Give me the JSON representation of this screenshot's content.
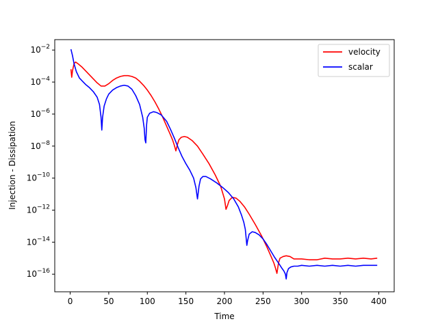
{
  "chart_data": {
    "type": "line",
    "title": "",
    "xlabel": "Time",
    "ylabel": "Injection - Dissipation",
    "xlim": [
      -20,
      420
    ],
    "xticks": [
      0,
      50,
      100,
      150,
      200,
      250,
      300,
      350,
      400
    ],
    "yscale": "log",
    "ylim_exp": [
      -17.1,
      -1.35
    ],
    "yticks_exp": [
      -16,
      -14,
      -12,
      -10,
      -8,
      -6,
      -4,
      -2
    ],
    "ytick_labels": [
      "10",
      "10",
      "10",
      "10",
      "10",
      "10",
      "10",
      "10"
    ],
    "ytick_superscripts": [
      "−16",
      "−14",
      "−12",
      "−10",
      "−8",
      "−6",
      "−4",
      "−2"
    ],
    "grid": false,
    "legend_position": "top-right",
    "series": [
      {
        "name": "velocity",
        "color": "#ff0000",
        "log10_y_points": [
          [
            1,
            -3.2
          ],
          [
            2,
            -3.7
          ],
          [
            3,
            -3.3
          ],
          [
            5,
            -2.85
          ],
          [
            7,
            -2.75
          ],
          [
            10,
            -2.85
          ],
          [
            15,
            -3.05
          ],
          [
            20,
            -3.3
          ],
          [
            25,
            -3.55
          ],
          [
            30,
            -3.8
          ],
          [
            35,
            -4.05
          ],
          [
            40,
            -4.25
          ],
          [
            45,
            -4.25
          ],
          [
            50,
            -4.1
          ],
          [
            55,
            -3.9
          ],
          [
            60,
            -3.75
          ],
          [
            65,
            -3.65
          ],
          [
            70,
            -3.6
          ],
          [
            75,
            -3.6
          ],
          [
            80,
            -3.65
          ],
          [
            85,
            -3.75
          ],
          [
            90,
            -3.95
          ],
          [
            95,
            -4.2
          ],
          [
            100,
            -4.5
          ],
          [
            105,
            -4.85
          ],
          [
            110,
            -5.25
          ],
          [
            115,
            -5.7
          ],
          [
            120,
            -6.2
          ],
          [
            125,
            -6.75
          ],
          [
            130,
            -7.3
          ],
          [
            133,
            -7.65
          ],
          [
            135,
            -7.95
          ],
          [
            137,
            -8.3
          ],
          [
            139,
            -7.9
          ],
          [
            141,
            -7.6
          ],
          [
            144,
            -7.45
          ],
          [
            148,
            -7.4
          ],
          [
            152,
            -7.45
          ],
          [
            158,
            -7.65
          ],
          [
            165,
            -8.0
          ],
          [
            172,
            -8.5
          ],
          [
            180,
            -9.1
          ],
          [
            188,
            -9.8
          ],
          [
            195,
            -10.5
          ],
          [
            200,
            -11.3
          ],
          [
            202,
            -11.95
          ],
          [
            204,
            -11.7
          ],
          [
            206,
            -11.4
          ],
          [
            210,
            -11.2
          ],
          [
            215,
            -11.25
          ],
          [
            220,
            -11.45
          ],
          [
            226,
            -11.8
          ],
          [
            232,
            -12.25
          ],
          [
            240,
            -12.9
          ],
          [
            248,
            -13.6
          ],
          [
            255,
            -14.3
          ],
          [
            260,
            -14.85
          ],
          [
            264,
            -15.3
          ],
          [
            266,
            -15.6
          ],
          [
            268,
            -15.95
          ],
          [
            270,
            -15.3
          ],
          [
            272,
            -15.0
          ],
          [
            276,
            -14.9
          ],
          [
            280,
            -14.85
          ],
          [
            285,
            -14.9
          ],
          [
            290,
            -15.05
          ],
          [
            295,
            -15.05
          ],
          [
            300,
            -15.05
          ],
          [
            310,
            -15.1
          ],
          [
            320,
            -15.1
          ],
          [
            330,
            -15.0
          ],
          [
            340,
            -15.05
          ],
          [
            350,
            -15.05
          ],
          [
            360,
            -15.0
          ],
          [
            370,
            -15.05
          ],
          [
            380,
            -15.0
          ],
          [
            390,
            -15.05
          ],
          [
            398,
            -15.0
          ]
        ]
      },
      {
        "name": "scalar",
        "color": "#0000ff",
        "log10_y_points": [
          [
            1,
            -1.95
          ],
          [
            3,
            -2.35
          ],
          [
            5,
            -2.85
          ],
          [
            8,
            -3.35
          ],
          [
            12,
            -3.75
          ],
          [
            16,
            -3.95
          ],
          [
            20,
            -4.15
          ],
          [
            25,
            -4.35
          ],
          [
            30,
            -4.6
          ],
          [
            35,
            -4.95
          ],
          [
            38,
            -5.4
          ],
          [
            40,
            -6.2
          ],
          [
            41,
            -7.0
          ],
          [
            42,
            -6.2
          ],
          [
            44,
            -5.5
          ],
          [
            47,
            -5.05
          ],
          [
            50,
            -4.75
          ],
          [
            55,
            -4.5
          ],
          [
            60,
            -4.35
          ],
          [
            65,
            -4.25
          ],
          [
            70,
            -4.2
          ],
          [
            75,
            -4.25
          ],
          [
            80,
            -4.45
          ],
          [
            85,
            -4.85
          ],
          [
            90,
            -5.4
          ],
          [
            94,
            -6.2
          ],
          [
            96,
            -6.9
          ],
          [
            97,
            -7.6
          ],
          [
            98,
            -7.8
          ],
          [
            99,
            -6.7
          ],
          [
            100,
            -6.2
          ],
          [
            103,
            -5.95
          ],
          [
            108,
            -5.85
          ],
          [
            112,
            -5.9
          ],
          [
            118,
            -6.05
          ],
          [
            125,
            -6.45
          ],
          [
            130,
            -6.95
          ],
          [
            135,
            -7.5
          ],
          [
            140,
            -8.1
          ],
          [
            145,
            -8.65
          ],
          [
            150,
            -9.1
          ],
          [
            155,
            -9.5
          ],
          [
            160,
            -10.0
          ],
          [
            163,
            -10.6
          ],
          [
            165,
            -11.3
          ],
          [
            167,
            -10.5
          ],
          [
            169,
            -10.05
          ],
          [
            172,
            -9.9
          ],
          [
            176,
            -9.9
          ],
          [
            182,
            -10.05
          ],
          [
            190,
            -10.3
          ],
          [
            198,
            -10.6
          ],
          [
            205,
            -10.9
          ],
          [
            212,
            -11.3
          ],
          [
            218,
            -11.8
          ],
          [
            222,
            -12.3
          ],
          [
            225,
            -12.75
          ],
          [
            227,
            -13.2
          ],
          [
            228,
            -13.7
          ],
          [
            229,
            -14.2
          ],
          [
            230,
            -13.9
          ],
          [
            232,
            -13.5
          ],
          [
            236,
            -13.35
          ],
          [
            240,
            -13.4
          ],
          [
            245,
            -13.55
          ],
          [
            250,
            -13.8
          ],
          [
            255,
            -14.15
          ],
          [
            260,
            -14.55
          ],
          [
            265,
            -14.95
          ],
          [
            270,
            -15.3
          ],
          [
            274,
            -15.6
          ],
          [
            277,
            -15.8
          ],
          [
            279,
            -16.0
          ],
          [
            280,
            -16.3
          ],
          [
            281,
            -15.9
          ],
          [
            283,
            -15.65
          ],
          [
            286,
            -15.55
          ],
          [
            290,
            -15.5
          ],
          [
            295,
            -15.5
          ],
          [
            300,
            -15.45
          ],
          [
            310,
            -15.5
          ],
          [
            320,
            -15.45
          ],
          [
            330,
            -15.5
          ],
          [
            340,
            -15.45
          ],
          [
            350,
            -15.5
          ],
          [
            360,
            -15.45
          ],
          [
            370,
            -15.5
          ],
          [
            380,
            -15.45
          ],
          [
            390,
            -15.45
          ],
          [
            398,
            -15.45
          ]
        ]
      }
    ]
  }
}
